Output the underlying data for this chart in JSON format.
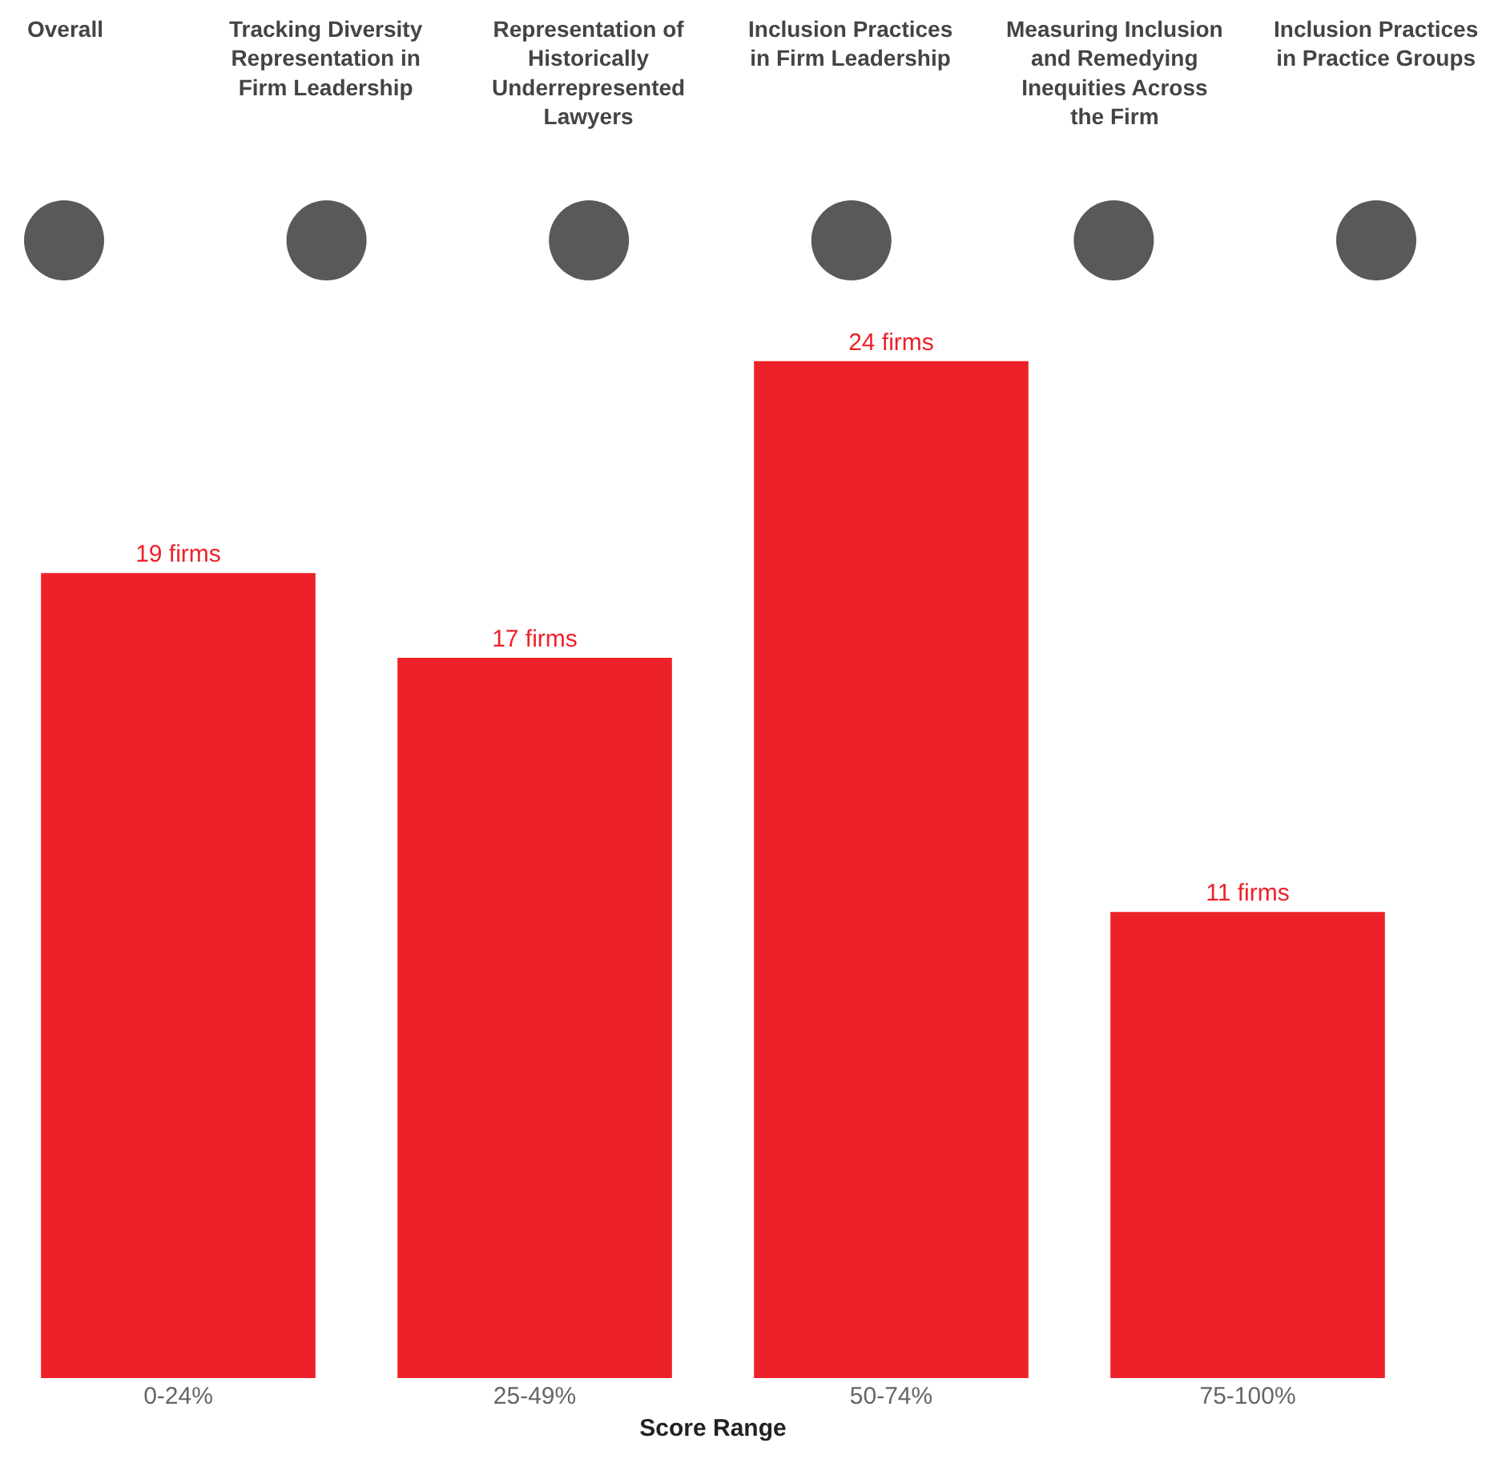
{
  "chart_data": {
    "type": "bar",
    "xlabel": "Score Range",
    "categories": [
      "0-24%",
      "25-49%",
      "50-74%",
      "75-100%"
    ],
    "values": [
      19,
      17,
      24,
      11
    ],
    "value_labels": [
      "19 firms",
      "17 firms",
      "24 firms",
      "11 firms"
    ],
    "color": "#ed2129",
    "legend": false,
    "annotations": [
      "Overall",
      "Tracking Diversity Representation in Firm Leadership",
      "Representation of Historically Underrepresented Lawyers",
      "Inclusion Practices in Firm Leadership",
      "Measuring Inclusion and Remedying Inequities Across the Firm",
      "Inclusion Practices in Practice Groups"
    ]
  }
}
